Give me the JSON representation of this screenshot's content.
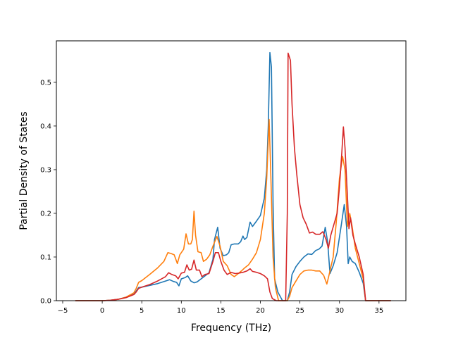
{
  "chart_data": {
    "type": "line",
    "title": "",
    "xlabel": "Frequency (THz)",
    "ylabel": "Partial Density of States",
    "xlim": [
      -5.8,
      38.4
    ],
    "ylim": [
      0.0,
      0.595
    ],
    "xticks": [
      -5,
      0,
      5,
      10,
      15,
      20,
      25,
      30,
      35
    ],
    "xtick_labels": [
      "−5",
      "0",
      "5",
      "10",
      "15",
      "20",
      "25",
      "30",
      "35"
    ],
    "yticks": [
      0.0,
      0.1,
      0.2,
      0.3,
      0.4,
      0.5
    ],
    "ytick_labels": [
      "0.0",
      "0.1",
      "0.2",
      "0.3",
      "0.4",
      "0.5"
    ],
    "grid": false,
    "legend": "none",
    "series": [
      {
        "color": "#1f77b4",
        "points": [
          [
            -3.4,
            0
          ],
          [
            0,
            0
          ],
          [
            1,
            0.001
          ],
          [
            2,
            0.003
          ],
          [
            3,
            0.008
          ],
          [
            4,
            0.015
          ],
          [
            4.3,
            0.022
          ],
          [
            4.6,
            0.03
          ],
          [
            5,
            0.031
          ],
          [
            6,
            0.035
          ],
          [
            7,
            0.039
          ],
          [
            8,
            0.045
          ],
          [
            8.5,
            0.048
          ],
          [
            9,
            0.044
          ],
          [
            9.4,
            0.042
          ],
          [
            9.7,
            0.034
          ],
          [
            10,
            0.05
          ],
          [
            10.5,
            0.053
          ],
          [
            10.8,
            0.057
          ],
          [
            11.2,
            0.045
          ],
          [
            11.6,
            0.041
          ],
          [
            12,
            0.043
          ],
          [
            12.5,
            0.05
          ],
          [
            13,
            0.057
          ],
          [
            13.5,
            0.064
          ],
          [
            14,
            0.095
          ],
          [
            14.2,
            0.14
          ],
          [
            14.6,
            0.168
          ],
          [
            14.9,
            0.12
          ],
          [
            15.3,
            0.103
          ],
          [
            15.7,
            0.105
          ],
          [
            16,
            0.11
          ],
          [
            16.3,
            0.128
          ],
          [
            16.7,
            0.13
          ],
          [
            17.2,
            0.13
          ],
          [
            17.5,
            0.135
          ],
          [
            17.8,
            0.148
          ],
          [
            18,
            0.14
          ],
          [
            18.3,
            0.145
          ],
          [
            18.7,
            0.18
          ],
          [
            19,
            0.17
          ],
          [
            19.5,
            0.182
          ],
          [
            20,
            0.195
          ],
          [
            20.5,
            0.235
          ],
          [
            20.8,
            0.3
          ],
          [
            21,
            0.4
          ],
          [
            21.2,
            0.568
          ],
          [
            21.4,
            0.535
          ],
          [
            21.6,
            0.22
          ],
          [
            21.8,
            0.05
          ],
          [
            22.2,
            0.02
          ],
          [
            22.8,
            0
          ],
          [
            23.4,
            0
          ],
          [
            23.7,
            0.02
          ],
          [
            24,
            0.06
          ],
          [
            24.5,
            0.078
          ],
          [
            25,
            0.09
          ],
          [
            25.5,
            0.1
          ],
          [
            26,
            0.107
          ],
          [
            26.5,
            0.106
          ],
          [
            27,
            0.115
          ],
          [
            27.4,
            0.118
          ],
          [
            27.8,
            0.125
          ],
          [
            28.2,
            0.168
          ],
          [
            28.5,
            0.135
          ],
          [
            28.8,
            0.062
          ],
          [
            29.2,
            0.08
          ],
          [
            29.7,
            0.11
          ],
          [
            30.2,
            0.17
          ],
          [
            30.6,
            0.22
          ],
          [
            30.9,
            0.17
          ],
          [
            31.1,
            0.085
          ],
          [
            31.3,
            0.1
          ],
          [
            31.6,
            0.09
          ],
          [
            32,
            0.085
          ],
          [
            32.5,
            0.065
          ],
          [
            33,
            0.04
          ],
          [
            33.3,
            0
          ],
          [
            36.5,
            0
          ]
        ]
      },
      {
        "color": "#ff7f0e",
        "points": [
          [
            -3.4,
            0
          ],
          [
            0,
            0
          ],
          [
            1,
            0.001
          ],
          [
            2,
            0.003
          ],
          [
            3,
            0.008
          ],
          [
            4,
            0.018
          ],
          [
            4.3,
            0.028
          ],
          [
            4.6,
            0.042
          ],
          [
            5,
            0.046
          ],
          [
            6,
            0.06
          ],
          [
            7,
            0.075
          ],
          [
            7.8,
            0.09
          ],
          [
            8.3,
            0.11
          ],
          [
            8.7,
            0.108
          ],
          [
            9.1,
            0.105
          ],
          [
            9.5,
            0.085
          ],
          [
            9.8,
            0.105
          ],
          [
            10.3,
            0.118
          ],
          [
            10.6,
            0.153
          ],
          [
            10.9,
            0.13
          ],
          [
            11.2,
            0.13
          ],
          [
            11.4,
            0.14
          ],
          [
            11.6,
            0.205
          ],
          [
            11.8,
            0.15
          ],
          [
            12.1,
            0.112
          ],
          [
            12.5,
            0.11
          ],
          [
            12.8,
            0.09
          ],
          [
            13.2,
            0.095
          ],
          [
            13.6,
            0.105
          ],
          [
            14,
            0.125
          ],
          [
            14.5,
            0.147
          ],
          [
            14.9,
            0.125
          ],
          [
            15.3,
            0.09
          ],
          [
            15.8,
            0.08
          ],
          [
            16.3,
            0.06
          ],
          [
            16.7,
            0.055
          ],
          [
            17.2,
            0.062
          ],
          [
            17.6,
            0.068
          ],
          [
            18,
            0.075
          ],
          [
            18.5,
            0.082
          ],
          [
            19,
            0.095
          ],
          [
            19.5,
            0.11
          ],
          [
            20,
            0.14
          ],
          [
            20.5,
            0.2
          ],
          [
            20.8,
            0.28
          ],
          [
            21.1,
            0.415
          ],
          [
            21.3,
            0.3
          ],
          [
            21.6,
            0.1
          ],
          [
            21.9,
            0.03
          ],
          [
            22.3,
            0
          ],
          [
            23.4,
            0
          ],
          [
            23.7,
            0.01
          ],
          [
            24,
            0.03
          ],
          [
            24.5,
            0.045
          ],
          [
            25,
            0.06
          ],
          [
            25.5,
            0.068
          ],
          [
            26,
            0.07
          ],
          [
            26.5,
            0.07
          ],
          [
            27,
            0.068
          ],
          [
            27.5,
            0.068
          ],
          [
            28,
            0.058
          ],
          [
            28.4,
            0.038
          ],
          [
            28.7,
            0.06
          ],
          [
            29.2,
            0.1
          ],
          [
            29.6,
            0.18
          ],
          [
            30,
            0.28
          ],
          [
            30.4,
            0.33
          ],
          [
            30.7,
            0.3
          ],
          [
            31,
            0.17
          ],
          [
            31.3,
            0.2
          ],
          [
            31.6,
            0.17
          ],
          [
            32,
            0.12
          ],
          [
            32.5,
            0.085
          ],
          [
            33,
            0.05
          ],
          [
            33.3,
            0
          ],
          [
            36.5,
            0
          ]
        ]
      },
      {
        "color": "#d62728",
        "points": [
          [
            -3.4,
            0
          ],
          [
            0,
            0
          ],
          [
            1,
            0.001
          ],
          [
            2,
            0.003
          ],
          [
            3,
            0.007
          ],
          [
            4,
            0.014
          ],
          [
            4.3,
            0.02
          ],
          [
            4.6,
            0.028
          ],
          [
            5,
            0.031
          ],
          [
            6,
            0.037
          ],
          [
            7,
            0.045
          ],
          [
            8,
            0.055
          ],
          [
            8.4,
            0.064
          ],
          [
            8.8,
            0.06
          ],
          [
            9.3,
            0.057
          ],
          [
            9.6,
            0.05
          ],
          [
            10,
            0.063
          ],
          [
            10.4,
            0.065
          ],
          [
            10.7,
            0.082
          ],
          [
            11,
            0.07
          ],
          [
            11.3,
            0.072
          ],
          [
            11.6,
            0.093
          ],
          [
            11.9,
            0.07
          ],
          [
            12.3,
            0.07
          ],
          [
            12.6,
            0.055
          ],
          [
            13,
            0.06
          ],
          [
            13.5,
            0.062
          ],
          [
            14,
            0.09
          ],
          [
            14.3,
            0.11
          ],
          [
            14.7,
            0.11
          ],
          [
            15,
            0.09
          ],
          [
            15.4,
            0.07
          ],
          [
            15.8,
            0.06
          ],
          [
            16.3,
            0.065
          ],
          [
            16.8,
            0.062
          ],
          [
            17.3,
            0.063
          ],
          [
            17.8,
            0.065
          ],
          [
            18.3,
            0.068
          ],
          [
            18.7,
            0.073
          ],
          [
            19,
            0.067
          ],
          [
            19.5,
            0.065
          ],
          [
            20,
            0.062
          ],
          [
            20.5,
            0.057
          ],
          [
            20.9,
            0.05
          ],
          [
            21.2,
            0.02
          ],
          [
            21.5,
            0.005
          ],
          [
            22,
            0
          ],
          [
            23.2,
            0
          ],
          [
            23.4,
            0.2
          ],
          [
            23.5,
            0.567
          ],
          [
            23.8,
            0.55
          ],
          [
            24,
            0.45
          ],
          [
            24.3,
            0.35
          ],
          [
            24.6,
            0.29
          ],
          [
            25,
            0.22
          ],
          [
            25.4,
            0.19
          ],
          [
            25.8,
            0.175
          ],
          [
            26.2,
            0.155
          ],
          [
            26.6,
            0.157
          ],
          [
            27,
            0.152
          ],
          [
            27.5,
            0.152
          ],
          [
            27.9,
            0.158
          ],
          [
            28.3,
            0.14
          ],
          [
            28.6,
            0.12
          ],
          [
            28.9,
            0.15
          ],
          [
            29.3,
            0.175
          ],
          [
            29.7,
            0.2
          ],
          [
            30,
            0.26
          ],
          [
            30.3,
            0.34
          ],
          [
            30.5,
            0.398
          ],
          [
            30.7,
            0.35
          ],
          [
            31,
            0.24
          ],
          [
            31.2,
            0.165
          ],
          [
            31.4,
            0.19
          ],
          [
            31.7,
            0.15
          ],
          [
            32,
            0.13
          ],
          [
            32.5,
            0.1
          ],
          [
            33,
            0.06
          ],
          [
            33.3,
            0
          ],
          [
            36.5,
            0
          ]
        ]
      }
    ]
  }
}
